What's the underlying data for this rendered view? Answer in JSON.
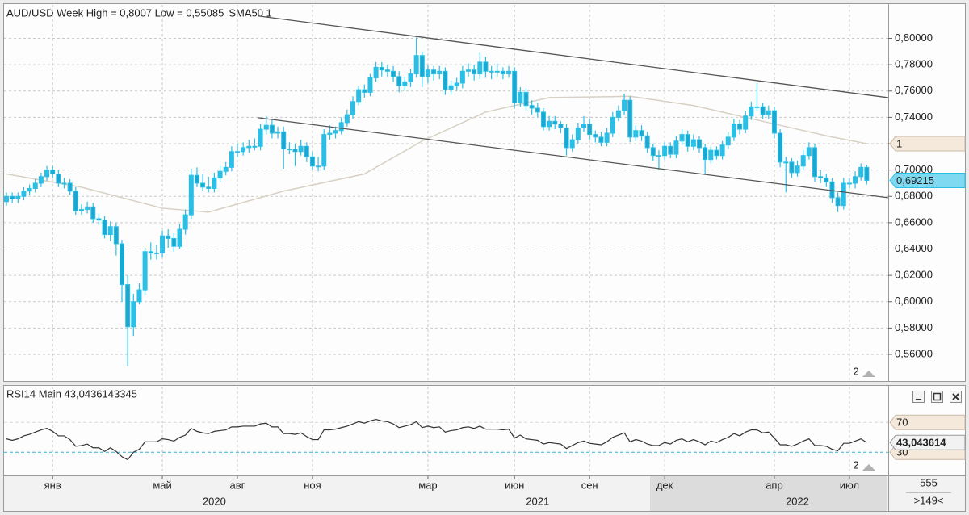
{
  "chart_data": {
    "type": "candlestick",
    "title": "AUD/USD Week High = 0,8007 Low = 0,55085",
    "indicator_label": "SMA50 1",
    "color": "#2bbfe6",
    "grid": true,
    "ylim": [
      0.541,
      0.823
    ],
    "yticks": [
      {
        "value": 0.56,
        "label": "0,56000"
      },
      {
        "value": 0.58,
        "label": "0,58000"
      },
      {
        "value": 0.6,
        "label": "0,60000"
      },
      {
        "value": 0.62,
        "label": "0,62000"
      },
      {
        "value": 0.64,
        "label": "0,64000"
      },
      {
        "value": 0.66,
        "label": "0,66000"
      },
      {
        "value": 0.68,
        "label": "0,68000"
      },
      {
        "value": 0.7,
        "label": "0,70000"
      },
      {
        "value": 0.72,
        "label": "0,72000"
      },
      {
        "value": 0.74,
        "label": "0,74000"
      },
      {
        "value": 0.76,
        "label": "0,76000"
      },
      {
        "value": 0.78,
        "label": "0,78000"
      },
      {
        "value": 0.8,
        "label": "0,80000"
      }
    ],
    "xticks": [
      {
        "value": 8,
        "label": "янв"
      },
      {
        "value": 27,
        "label": "май"
      },
      {
        "value": 40,
        "label": "авг"
      },
      {
        "value": 53,
        "label": "ноя"
      },
      {
        "value": 73,
        "label": "мар"
      },
      {
        "value": 88,
        "label": "июн"
      },
      {
        "value": 101,
        "label": "сен"
      },
      {
        "value": 114,
        "label": "дек"
      },
      {
        "value": 133,
        "label": "апр"
      },
      {
        "value": 146,
        "label": "июл"
      }
    ],
    "year_ticks": [
      {
        "value": 36,
        "label": "2020"
      },
      {
        "value": 92,
        "label": "2021"
      },
      {
        "value": 137,
        "label": "2022"
      }
    ],
    "candles": [
      [
        0.676,
        0.683,
        0.673,
        0.68
      ],
      [
        0.68,
        0.683,
        0.675,
        0.678
      ],
      [
        0.678,
        0.683,
        0.675,
        0.68
      ],
      [
        0.68,
        0.687,
        0.677,
        0.684
      ],
      [
        0.684,
        0.689,
        0.681,
        0.686
      ],
      [
        0.686,
        0.693,
        0.683,
        0.69
      ],
      [
        0.69,
        0.698,
        0.687,
        0.695
      ],
      [
        0.695,
        0.703,
        0.692,
        0.7
      ],
      [
        0.7,
        0.703,
        0.694,
        0.697
      ],
      [
        0.697,
        0.7,
        0.687,
        0.69
      ],
      [
        0.69,
        0.694,
        0.686,
        0.69
      ],
      [
        0.69,
        0.693,
        0.681,
        0.684
      ],
      [
        0.684,
        0.687,
        0.666,
        0.669
      ],
      [
        0.669,
        0.674,
        0.666,
        0.67
      ],
      [
        0.67,
        0.676,
        0.667,
        0.672
      ],
      [
        0.672,
        0.675,
        0.66,
        0.663
      ],
      [
        0.663,
        0.667,
        0.658,
        0.662
      ],
      [
        0.662,
        0.665,
        0.648,
        0.651
      ],
      [
        0.651,
        0.661,
        0.646,
        0.657
      ],
      [
        0.657,
        0.66,
        0.635,
        0.644
      ],
      [
        0.644,
        0.647,
        0.6,
        0.613
      ],
      [
        0.613,
        0.62,
        0.551,
        0.581
      ],
      [
        0.581,
        0.606,
        0.574,
        0.6
      ],
      [
        0.6,
        0.614,
        0.598,
        0.609
      ],
      [
        0.609,
        0.641,
        0.605,
        0.638
      ],
      [
        0.638,
        0.645,
        0.632,
        0.637
      ],
      [
        0.637,
        0.643,
        0.632,
        0.637
      ],
      [
        0.637,
        0.654,
        0.634,
        0.65
      ],
      [
        0.65,
        0.655,
        0.641,
        0.648
      ],
      [
        0.648,
        0.652,
        0.638,
        0.642
      ],
      [
        0.642,
        0.659,
        0.64,
        0.655
      ],
      [
        0.655,
        0.67,
        0.651,
        0.666
      ],
      [
        0.666,
        0.701,
        0.663,
        0.696
      ],
      [
        0.696,
        0.702,
        0.687,
        0.69
      ],
      [
        0.69,
        0.697,
        0.684,
        0.687
      ],
      [
        0.687,
        0.695,
        0.683,
        0.686
      ],
      [
        0.686,
        0.698,
        0.683,
        0.694
      ],
      [
        0.694,
        0.703,
        0.691,
        0.699
      ],
      [
        0.699,
        0.706,
        0.696,
        0.702
      ],
      [
        0.702,
        0.718,
        0.699,
        0.714
      ],
      [
        0.714,
        0.72,
        0.71,
        0.714
      ],
      [
        0.714,
        0.721,
        0.711,
        0.717
      ],
      [
        0.717,
        0.723,
        0.713,
        0.718
      ],
      [
        0.718,
        0.724,
        0.715,
        0.718
      ],
      [
        0.718,
        0.735,
        0.715,
        0.731
      ],
      [
        0.731,
        0.741,
        0.727,
        0.734
      ],
      [
        0.734,
        0.738,
        0.724,
        0.728
      ],
      [
        0.728,
        0.733,
        0.724,
        0.729
      ],
      [
        0.729,
        0.733,
        0.701,
        0.716
      ],
      [
        0.716,
        0.721,
        0.712,
        0.716
      ],
      [
        0.716,
        0.72,
        0.703,
        0.714
      ],
      [
        0.714,
        0.723,
        0.711,
        0.718
      ],
      [
        0.718,
        0.721,
        0.706,
        0.71
      ],
      [
        0.71,
        0.714,
        0.7,
        0.703
      ],
      [
        0.703,
        0.71,
        0.699,
        0.703
      ],
      [
        0.703,
        0.731,
        0.7,
        0.727
      ],
      [
        0.727,
        0.734,
        0.723,
        0.728
      ],
      [
        0.728,
        0.733,
        0.724,
        0.73
      ],
      [
        0.73,
        0.74,
        0.727,
        0.736
      ],
      [
        0.736,
        0.746,
        0.733,
        0.742
      ],
      [
        0.742,
        0.756,
        0.739,
        0.752
      ],
      [
        0.752,
        0.764,
        0.749,
        0.761
      ],
      [
        0.761,
        0.765,
        0.755,
        0.759
      ],
      [
        0.759,
        0.773,
        0.756,
        0.77
      ],
      [
        0.77,
        0.782,
        0.767,
        0.778
      ],
      [
        0.778,
        0.782,
        0.771,
        0.776
      ],
      [
        0.776,
        0.78,
        0.771,
        0.775
      ],
      [
        0.775,
        0.779,
        0.767,
        0.771
      ],
      [
        0.771,
        0.775,
        0.759,
        0.764
      ],
      [
        0.764,
        0.771,
        0.76,
        0.767
      ],
      [
        0.767,
        0.777,
        0.763,
        0.773
      ],
      [
        0.773,
        0.8007,
        0.77,
        0.787
      ],
      [
        0.787,
        0.79,
        0.763,
        0.771
      ],
      [
        0.771,
        0.78,
        0.766,
        0.776
      ],
      [
        0.776,
        0.779,
        0.768,
        0.773
      ],
      [
        0.773,
        0.779,
        0.769,
        0.775
      ],
      [
        0.775,
        0.778,
        0.757,
        0.761
      ],
      [
        0.761,
        0.768,
        0.757,
        0.764
      ],
      [
        0.764,
        0.77,
        0.76,
        0.766
      ],
      [
        0.766,
        0.779,
        0.762,
        0.775
      ],
      [
        0.775,
        0.781,
        0.771,
        0.776
      ],
      [
        0.776,
        0.78,
        0.768,
        0.773
      ],
      [
        0.773,
        0.789,
        0.769,
        0.782
      ],
      [
        0.782,
        0.786,
        0.77,
        0.775
      ],
      [
        0.775,
        0.779,
        0.769,
        0.775
      ],
      [
        0.775,
        0.781,
        0.771,
        0.775
      ],
      [
        0.775,
        0.778,
        0.769,
        0.773
      ],
      [
        0.773,
        0.779,
        0.77,
        0.775
      ],
      [
        0.775,
        0.778,
        0.747,
        0.751
      ],
      [
        0.751,
        0.763,
        0.748,
        0.759
      ],
      [
        0.759,
        0.762,
        0.745,
        0.749
      ],
      [
        0.749,
        0.753,
        0.742,
        0.747
      ],
      [
        0.747,
        0.751,
        0.74,
        0.744
      ],
      [
        0.744,
        0.747,
        0.73,
        0.733
      ],
      [
        0.733,
        0.741,
        0.73,
        0.737
      ],
      [
        0.737,
        0.741,
        0.731,
        0.735
      ],
      [
        0.735,
        0.737,
        0.728,
        0.732
      ],
      [
        0.732,
        0.735,
        0.711,
        0.717
      ],
      [
        0.717,
        0.727,
        0.714,
        0.723
      ],
      [
        0.723,
        0.736,
        0.72,
        0.732
      ],
      [
        0.732,
        0.741,
        0.729,
        0.735
      ],
      [
        0.735,
        0.739,
        0.723,
        0.727
      ],
      [
        0.727,
        0.73,
        0.721,
        0.725
      ],
      [
        0.725,
        0.729,
        0.718,
        0.721
      ],
      [
        0.721,
        0.732,
        0.718,
        0.728
      ],
      [
        0.728,
        0.744,
        0.725,
        0.74
      ],
      [
        0.74,
        0.749,
        0.737,
        0.745
      ],
      [
        0.745,
        0.758,
        0.742,
        0.753
      ],
      [
        0.753,
        0.756,
        0.721,
        0.725
      ],
      [
        0.725,
        0.734,
        0.722,
        0.73
      ],
      [
        0.73,
        0.734,
        0.722,
        0.726
      ],
      [
        0.726,
        0.729,
        0.713,
        0.717
      ],
      [
        0.717,
        0.72,
        0.707,
        0.711
      ],
      [
        0.711,
        0.715,
        0.7,
        0.711
      ],
      [
        0.711,
        0.721,
        0.708,
        0.718
      ],
      [
        0.718,
        0.721,
        0.709,
        0.712
      ],
      [
        0.712,
        0.726,
        0.709,
        0.722
      ],
      [
        0.722,
        0.731,
        0.719,
        0.727
      ],
      [
        0.727,
        0.73,
        0.714,
        0.718
      ],
      [
        0.718,
        0.727,
        0.715,
        0.723
      ],
      [
        0.723,
        0.726,
        0.713,
        0.717
      ],
      [
        0.717,
        0.72,
        0.697,
        0.708
      ],
      [
        0.708,
        0.718,
        0.705,
        0.715
      ],
      [
        0.715,
        0.718,
        0.708,
        0.711
      ],
      [
        0.711,
        0.722,
        0.708,
        0.719
      ],
      [
        0.719,
        0.729,
        0.716,
        0.725
      ],
      [
        0.725,
        0.739,
        0.722,
        0.735
      ],
      [
        0.735,
        0.738,
        0.727,
        0.731
      ],
      [
        0.731,
        0.745,
        0.728,
        0.741
      ],
      [
        0.741,
        0.752,
        0.738,
        0.748
      ],
      [
        0.748,
        0.766,
        0.745,
        0.748
      ],
      [
        0.748,
        0.751,
        0.739,
        0.742
      ],
      [
        0.742,
        0.749,
        0.739,
        0.745
      ],
      [
        0.745,
        0.748,
        0.724,
        0.728
      ],
      [
        0.728,
        0.731,
        0.702,
        0.706
      ],
      [
        0.706,
        0.71,
        0.683,
        0.706
      ],
      [
        0.706,
        0.709,
        0.694,
        0.698
      ],
      [
        0.698,
        0.707,
        0.695,
        0.703
      ],
      [
        0.703,
        0.715,
        0.7,
        0.711
      ],
      [
        0.711,
        0.721,
        0.708,
        0.717
      ],
      [
        0.717,
        0.72,
        0.691,
        0.695
      ],
      [
        0.695,
        0.7,
        0.69,
        0.694
      ],
      [
        0.694,
        0.697,
        0.687,
        0.691
      ],
      [
        0.691,
        0.694,
        0.675,
        0.679
      ],
      [
        0.679,
        0.683,
        0.668,
        0.673
      ],
      [
        0.673,
        0.694,
        0.67,
        0.69
      ],
      [
        0.69,
        0.694,
        0.686,
        0.69
      ],
      [
        0.69,
        0.699,
        0.686,
        0.695
      ],
      [
        0.695,
        0.705,
        0.692,
        0.702
      ],
      [
        0.702,
        0.704,
        0.689,
        0.69215
      ]
    ],
    "sma50": {
      "color": "#d8d0c4",
      "label": "1",
      "x": [
        0,
        13,
        27,
        35,
        48,
        62,
        72,
        83,
        94,
        108,
        119,
        133,
        142,
        149
      ],
      "values": [
        0.697,
        0.687,
        0.671,
        0.668,
        0.684,
        0.697,
        0.722,
        0.744,
        0.755,
        0.756,
        0.749,
        0.735,
        0.726,
        0.72
      ]
    },
    "trendlines": [
      {
        "x": [
          43.6,
          152.7
        ],
        "values": [
          0.817,
          0.755
        ]
      },
      {
        "x": [
          43.6,
          152.7
        ],
        "values": [
          0.7397,
          0.679
        ]
      }
    ],
    "last_price": {
      "value": 0.69215,
      "label": "0,69215"
    },
    "pane_marker": "2",
    "rsi": {
      "title": "RSI14 Main 43,0436143345",
      "color": "#333333",
      "ylim": [
        0,
        119
      ],
      "levels": [
        70,
        30
      ],
      "pane_marker": "2",
      "last": {
        "value": 43.04,
        "label": "43,043614"
      },
      "values": [
        48,
        46,
        48,
        52,
        54,
        57,
        60,
        62,
        58,
        52,
        52,
        47,
        38,
        39,
        41,
        36,
        36,
        31,
        36,
        31,
        24,
        20,
        30,
        34,
        44,
        44,
        44,
        48,
        47,
        45,
        50,
        53,
        62,
        58,
        56,
        55,
        58,
        59,
        60,
        64,
        64,
        65,
        65,
        65,
        68,
        69,
        64,
        64,
        55,
        55,
        54,
        56,
        51,
        47,
        47,
        60,
        60,
        61,
        63,
        65,
        68,
        71,
        69,
        72,
        74,
        72,
        71,
        68,
        63,
        65,
        67,
        71,
        63,
        65,
        63,
        64,
        57,
        59,
        60,
        63,
        64,
        62,
        65,
        61,
        61,
        61,
        60,
        61,
        49,
        53,
        48,
        47,
        46,
        41,
        43,
        42,
        41,
        35,
        39,
        43,
        45,
        42,
        41,
        40,
        44,
        50,
        53,
        56,
        44,
        47,
        45,
        41,
        39,
        39,
        43,
        41,
        46,
        48,
        44,
        47,
        44,
        40,
        45,
        43,
        47,
        50,
        55,
        52,
        57,
        60,
        60,
        56,
        57,
        49,
        40,
        40,
        38,
        41,
        45,
        48,
        39,
        39,
        38,
        34,
        32,
        42,
        42,
        45,
        48,
        43.04
      ]
    },
    "footer": {
      "count": "555",
      "position": ">149<"
    }
  }
}
